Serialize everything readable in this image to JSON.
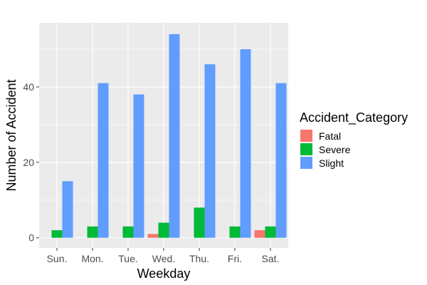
{
  "chart_data": {
    "type": "bar",
    "categories": [
      "Sun.",
      "Mon.",
      "Tue.",
      "Wed.",
      "Thu.",
      "Fri.",
      "Sat."
    ],
    "series": [
      {
        "name": "Fatal",
        "color": "#F8766D",
        "values": [
          0,
          0,
          0,
          1,
          0,
          0,
          2
        ]
      },
      {
        "name": "Severe",
        "color": "#00BA38",
        "values": [
          2,
          3,
          3,
          4,
          8,
          3,
          3
        ]
      },
      {
        "name": "Slight",
        "color": "#619CFF",
        "values": [
          15,
          41,
          38,
          54,
          46,
          50,
          41
        ]
      }
    ],
    "xlabel": "Weekday",
    "ylabel": "Number of Accident",
    "ylim": [
      -2.7,
      57.0
    ],
    "yticks": [
      0,
      20,
      40
    ],
    "legend_title": "Accident_Category",
    "legend_position": "right",
    "panel_background": "#EBEBEB",
    "grid": true
  }
}
